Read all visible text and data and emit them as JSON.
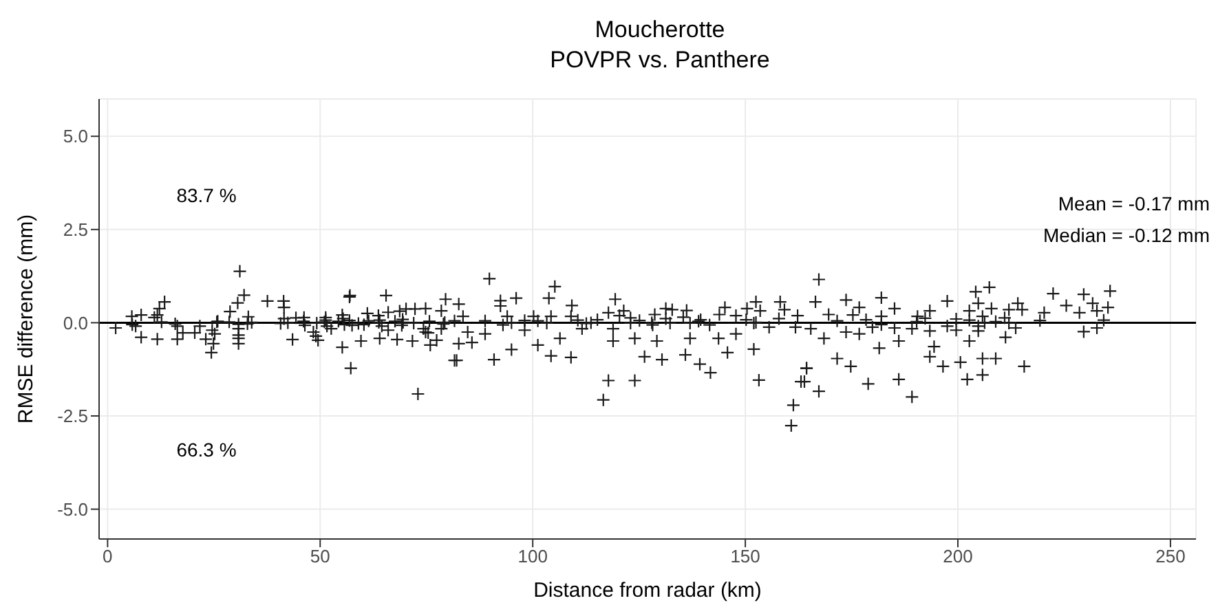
{
  "chart_data": {
    "type": "scatter",
    "title": "Moucherotte",
    "subtitle": "POVPR vs. Panthere",
    "xlabel": "Distance from radar (km)",
    "ylabel": "RMSE difference (mm)",
    "annotations": [
      "83.7 %",
      "66.3 %",
      "Mean = -0.17 mm",
      "Median = -0.12 mm"
    ],
    "xlim": [
      -2,
      256
    ],
    "xticks": [
      0,
      50,
      100,
      150,
      200,
      250
    ],
    "ylim": [
      -5.8,
      6
    ],
    "yticks": [
      {
        "value": -5,
        "label": "-5.0"
      },
      {
        "value": -2.5,
        "label": "-2.5"
      },
      {
        "value": 0,
        "label": "0.0"
      },
      {
        "value": 2.5,
        "label": "2.5"
      },
      {
        "value": 5,
        "label": "5.0"
      }
    ],
    "grid": true,
    "marker": "cross",
    "ref_lines": [
      {
        "axis": "y",
        "value": 0,
        "color": "#000000"
      }
    ],
    "series": [
      {
        "color": "#1a1a1a",
        "x": [
          5.7,
          7.9,
          11.0,
          11.7,
          12.2,
          13.4,
          12.7,
          25.9,
          25.7,
          28.6,
          28.8,
          31.1,
          32.1,
          30.6,
          33.1,
          33.9,
          37.6,
          41.4,
          41.5,
          41.5,
          42.4,
          44.3,
          46.2,
          46.1,
          51.3,
          51.3,
          51.0,
          54.3,
          55.2,
          55.4,
          57.0,
          56.9,
          56.9,
          61.1,
          61.4,
          63.7,
          63.8,
          64.0,
          65.5,
          66.0,
          67.6,
          69.4,
          68.7,
          69.5,
          70.2,
          72.3,
          74.8,
          75.7,
          78.5,
          79.5,
          79.3,
          1.9,
          5.8,
          6.6,
          7.9,
          11.7,
          15.9,
          16.4,
          16.4,
          17.7,
          20.5,
          21.7,
          23.1,
          24.6,
          24.9,
          24.4,
          25.2,
          30.8,
          30.8,
          30.8,
          30.8,
          30.8,
          32.9,
          40.7,
          43.5,
          46.4,
          48.4,
          49.0,
          49.5,
          49.2,
          51.6,
          52.6,
          55.2,
          55.7,
          57.5,
          59.0,
          60.3,
          59.6,
          57.2,
          64.0,
          64.5,
          66.0,
          68.1,
          69.2,
          71.7,
          72.0,
          73.0,
          74.3,
          75.4,
          75.9,
          77.4,
          74.8,
          78.5,
          81.6,
          79.0,
          89.8,
          82.6,
          92.4,
          92.4,
          96.1,
          103.8,
          105.2,
          109.2,
          119.4,
          117.8,
          121.4,
          120.4,
          131.3,
          132.8,
          136.2,
          135.4,
          131.3,
          128.7,
          139.5,
          139.0,
          145.2,
          143.9,
          147.8,
          150.4,
          152.5,
          153.5,
          158.2,
          159.2,
          162.3,
          157.9,
          150.2,
          152.5,
          94.0,
          100.2,
          104.3,
          109.0,
          98.1,
          101.2,
          88.8,
          110.6,
          115.2,
          123.0,
          125.1,
          113.7,
          95.0,
          128.0,
          81.6,
          83.6,
          82.1,
          90.9,
          82.6,
          85.7,
          95.0,
          101.2,
          104.3,
          109.0,
          117.8,
          116.6,
          124.0,
          130.4,
          126.3,
          135.9,
          139.3,
          141.8,
          153.2,
          145.8,
          152.0,
          160.8,
          161.3,
          163.1,
          164.4,
          103.3,
          112.6,
          123.0,
          132.3,
          137.0,
          152.0,
          141.6,
          155.6,
          161.8,
          111.6,
          118.9,
          128.2,
          93.0,
          98.1,
          84.7,
          124.0,
          129.2,
          137.0,
          143.7,
          147.8,
          88.8,
          106.4,
          118.9,
          167.3,
          166.5,
          173.7,
          176.8,
          182.0,
          185.1,
          169.6,
          175.3,
          182.0,
          171.6,
          178.4,
          190.3,
          190.5,
          193.4,
          197.5,
          192.3,
          204.2,
          207.4,
          204.8,
          202.7,
          207.9,
          212.0,
          214.1,
          215.1,
          211.0,
          208.9,
          205.8,
          202.7,
          199.6,
          219.3,
          220.3,
          222.4,
          225.5,
          228.6,
          229.6,
          231.7,
          235.8,
          235.3,
          232.7,
          234.3,
          206.3,
          212.0,
          213.6,
          211.2,
          204.8,
          204.8,
          202.7,
          205.8,
          205.8,
          202.2,
          208.9,
          215.6,
          229.6,
          232.7,
          165.4,
          168.5,
          173.7,
          176.8,
          182.0,
          185.1,
          179.9,
          186.1,
          181.5,
          178.9,
          186.1,
          189.2,
          167.3,
          171.6,
          174.8,
          189.2,
          193.4,
          197.5,
          199.6,
          194.4,
          196.5,
          193.4,
          200.6,
          164.4,
          163.9
        ],
        "values": [
          0.17,
          0.21,
          0.14,
          0.21,
          0.38,
          0.56,
          0.02,
          0.04,
          0.02,
          0.02,
          0.3,
          1.38,
          0.74,
          0.53,
          0.16,
          0.01,
          0.58,
          0.58,
          0.41,
          0.11,
          0,
          0.13,
          0.14,
          0.04,
          0.14,
          0.07,
          0.02,
          0.04,
          0.21,
          0.11,
          0.73,
          0.69,
          0.06,
          0.25,
          0.05,
          0.19,
          0.01,
          0.07,
          0.73,
          0.28,
          0.04,
          0.09,
          0.31,
          0.01,
          0.37,
          0.37,
          0.38,
          0.04,
          0.32,
          0.63,
          0.01,
          -0.14,
          -0.05,
          -0.09,
          -0.39,
          -0.44,
          -0.03,
          -0.09,
          -0.44,
          -0.27,
          -0.27,
          -0.09,
          -0.44,
          -0.2,
          -0.56,
          -0.8,
          -0.3,
          -0.04,
          -0.16,
          -0.33,
          -0.42,
          -0.56,
          -0.03,
          -0.02,
          -0.45,
          -0.07,
          -0.25,
          -0.36,
          -0.47,
          -0.01,
          -0.09,
          -0.16,
          -0.66,
          -0.05,
          -0.07,
          -0.02,
          -0.05,
          -0.49,
          -1.22,
          -0.42,
          -0.09,
          -0.2,
          -0.45,
          -0.07,
          -0.49,
          -0.01,
          -1.91,
          -0.16,
          -0.27,
          -0.6,
          -0.47,
          -0.25,
          -0.16,
          -1.01,
          -0.03,
          1.18,
          0.5,
          0.59,
          0.45,
          0.66,
          0.66,
          0.97,
          0.46,
          0.63,
          0.27,
          0.32,
          0.19,
          0.38,
          0.35,
          0.33,
          0.15,
          0.11,
          0.22,
          0.08,
          0.04,
          0.41,
          0.22,
          0.19,
          0.38,
          0.56,
          0.32,
          0.56,
          0.35,
          0.19,
          0.11,
          0.08,
          0.01,
          0.17,
          0.17,
          0.17,
          0.17,
          0.06,
          0.05,
          0.05,
          0.07,
          0.08,
          0.13,
          0.06,
          0,
          0,
          0,
          0.05,
          0.17,
          -1.01,
          -0.99,
          -0.56,
          -0.53,
          -0.72,
          -0.6,
          -0.89,
          -0.93,
          -1.55,
          -2.07,
          -1.55,
          -0.99,
          -0.91,
          -0.86,
          -1.11,
          -1.34,
          -1.54,
          -0.8,
          -0.71,
          -2.76,
          -2.21,
          -1.58,
          -1.22,
          -0.01,
          -0.02,
          -0.01,
          -0.01,
          -0.01,
          -0.01,
          -0.06,
          -0.12,
          -0.12,
          -0.16,
          -0.16,
          -0.06,
          -0.06,
          -0.2,
          -0.25,
          -0.42,
          -0.49,
          -0.42,
          -0.42,
          -0.3,
          -0.3,
          -0.42,
          -0.49,
          1.16,
          0.56,
          0.61,
          0.41,
          0.67,
          0.38,
          0.22,
          0.21,
          0.17,
          0.05,
          0.08,
          0.03,
          0.17,
          0.32,
          0.58,
          0.12,
          0.83,
          0.95,
          0.52,
          0.32,
          0.38,
          0.35,
          0.52,
          0.35,
          0.13,
          0.03,
          0.17,
          0.07,
          0.1,
          0.06,
          0.27,
          0.78,
          0.46,
          0.27,
          0.76,
          0.52,
          0.85,
          0.41,
          0.32,
          0.07,
          0,
          -0.01,
          -0.14,
          -0.39,
          -0.09,
          -0.22,
          -0.49,
          -0.96,
          -1.4,
          -1.52,
          -0.96,
          -1.17,
          -0.24,
          -0.14,
          -0.16,
          -0.42,
          -0.25,
          -0.3,
          -0.05,
          -0.14,
          -0.12,
          -0.49,
          -0.68,
          -1.64,
          -1.52,
          -1.99,
          -1.84,
          -0.96,
          -1.17,
          -0.16,
          -0.22,
          -0.09,
          -0.2,
          -0.64,
          -1.17,
          -0.91,
          -1.06,
          -1.22,
          -1.58
        ]
      }
    ]
  }
}
